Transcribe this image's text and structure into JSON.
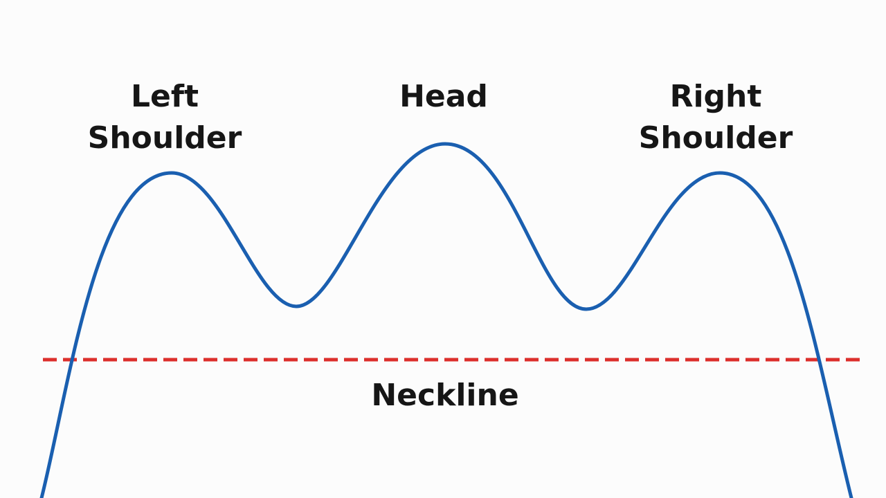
{
  "labels": {
    "left_shoulder": "Left\nShoulder",
    "head": "Head",
    "right_shoulder": "Right\nShoulder",
    "neckline": "Neckline"
  },
  "colors": {
    "price_line": "#1a5fb0",
    "neckline": "#dc2f2c",
    "text": "#161616",
    "background": "#fcfcfc"
  }
}
